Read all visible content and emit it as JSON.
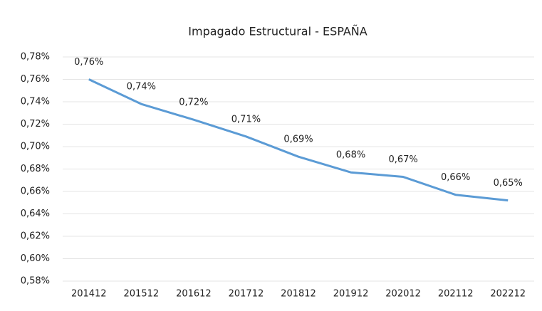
{
  "chart_data": {
    "type": "line",
    "title": "Impagado Estructural - ESPAÑA",
    "categories": [
      "201412",
      "201512",
      "201612",
      "201712",
      "201812",
      "201912",
      "202012",
      "202112",
      "202212"
    ],
    "series": [
      {
        "name": "Impagado Estructural",
        "color": "#5b9bd5",
        "values": [
          0.76,
          0.738,
          0.724,
          0.709,
          0.691,
          0.677,
          0.673,
          0.657,
          0.652
        ],
        "value_labels": [
          "0,76%",
          "0,74%",
          "0,72%",
          "0,71%",
          "0,69%",
          "0,68%",
          "0,67%",
          "0,66%",
          "0,65%"
        ]
      }
    ],
    "ylim": [
      0.58,
      0.78
    ],
    "yticks": [
      {
        "value": 0.58,
        "label": "0,58%"
      },
      {
        "value": 0.6,
        "label": "0,60%"
      },
      {
        "value": 0.62,
        "label": "0,62%"
      },
      {
        "value": 0.64,
        "label": "0,64%"
      },
      {
        "value": 0.66,
        "label": "0,66%"
      },
      {
        "value": 0.68,
        "label": "0,68%"
      },
      {
        "value": 0.7,
        "label": "0,70%"
      },
      {
        "value": 0.72,
        "label": "0,72%"
      },
      {
        "value": 0.74,
        "label": "0,74%"
      },
      {
        "value": 0.76,
        "label": "0,76%"
      },
      {
        "value": 0.78,
        "label": "0,78%"
      }
    ],
    "grid": true
  }
}
